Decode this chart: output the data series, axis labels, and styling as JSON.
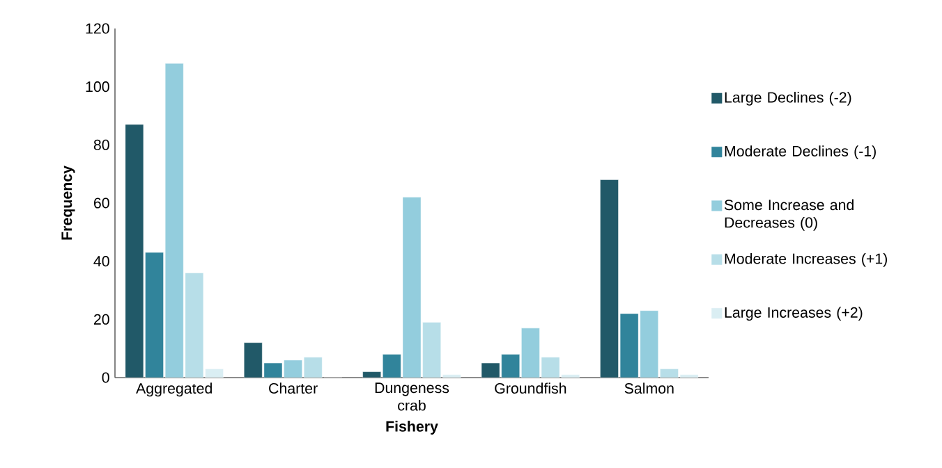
{
  "chart_data": {
    "type": "bar",
    "xlabel": "Fishery",
    "ylabel": "Frequency",
    "categories": [
      "Aggregated",
      "Charter",
      "Dungeness crab",
      "Groundfish",
      "Salmon"
    ],
    "series": [
      {
        "name": "Large Declines (-2)",
        "color": "#215968",
        "values": [
          87,
          12,
          2,
          5,
          68
        ]
      },
      {
        "name": "Moderate Declines (-1)",
        "color": "#31849b",
        "values": [
          43,
          5,
          8,
          8,
          22
        ]
      },
      {
        "name": "Some Increase and Decreases (0)",
        "color": "#93cddd",
        "values": [
          108,
          6,
          62,
          17,
          23
        ]
      },
      {
        "name": "Moderate Increases (+1)",
        "color": "#b7dee8",
        "values": [
          36,
          7,
          19,
          7,
          3
        ]
      },
      {
        "name": "Large Increases (+2)",
        "color": "#daeef3",
        "values": [
          3,
          0,
          1,
          1,
          1
        ]
      }
    ],
    "ylim": [
      0,
      120
    ],
    "yticks": [
      0,
      20,
      40,
      60,
      80,
      100,
      120
    ],
    "grid": false,
    "legend": "right"
  }
}
